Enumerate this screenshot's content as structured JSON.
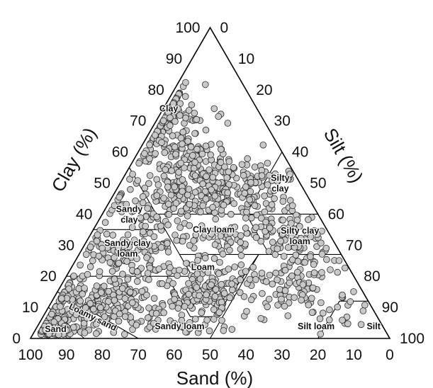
{
  "chart_data": {
    "type": "scatter",
    "subtype": "ternary",
    "xlabel": "Sand (%)",
    "left_axis_label": "Clay (%)",
    "right_axis_label": "Silt (%)",
    "ticks": [
      "0",
      "10",
      "20",
      "30",
      "40",
      "50",
      "60",
      "70",
      "80",
      "90",
      "100"
    ],
    "ranges": {
      "sand": [
        0,
        100
      ],
      "clay": [
        0,
        100
      ],
      "silt": [
        0,
        100
      ]
    },
    "grid": false,
    "marker": {
      "shape": "circle",
      "fill": "#c8c8c8",
      "stroke": "#2a2a2a"
    },
    "texture_classes": [
      "Clay",
      "Sandy clay",
      "Silty clay",
      "Clay loam",
      "Silty clay loam",
      "Sandy clay loam",
      "Loam",
      "Loamy sand",
      "Sand",
      "Sandy loam",
      "Silt loam",
      "Silt"
    ],
    "region_labels": [
      {
        "id": "clay",
        "lines": [
          "Clay"
        ],
        "sand": 25,
        "clay": 73
      },
      {
        "id": "sandy-clay",
        "lines": [
          "Sandy",
          "clay"
        ],
        "sand": 53,
        "clay": 39
      },
      {
        "id": "silty-clay",
        "lines": [
          "Silty",
          "clay"
        ],
        "sand": 6,
        "clay": 49
      },
      {
        "id": "clay-loam",
        "lines": [
          "Clay loam"
        ],
        "sand": 32,
        "clay": 34
      },
      {
        "id": "silty-clay-loam",
        "lines": [
          "Silty clay",
          "loam"
        ],
        "sand": 9,
        "clay": 32
      },
      {
        "id": "sandy-clay-loam",
        "lines": [
          "Sandy clay",
          "loam"
        ],
        "sand": 59,
        "clay": 28
      },
      {
        "id": "loam",
        "lines": [
          "Loam"
        ],
        "sand": 41,
        "clay": 22
      },
      {
        "id": "loamy-sand",
        "lines": [
          "Loamy sand"
        ],
        "sand": 80,
        "clay": 6,
        "rotate": 26
      },
      {
        "id": "sand",
        "lines": [
          "Sand"
        ],
        "sand": 92,
        "clay": 2
      },
      {
        "id": "sandy-loam",
        "lines": [
          "Sandy loam"
        ],
        "sand": 57,
        "clay": 3
      },
      {
        "id": "silt-loam",
        "lines": [
          "Silt loam"
        ],
        "sand": 19,
        "clay": 3
      },
      {
        "id": "silt",
        "lines": [
          "Silt"
        ],
        "sand": 3,
        "clay": 3
      }
    ],
    "point_clusters": [
      {
        "sand": 25,
        "clay": 88,
        "sd_sand": 4,
        "sd_clay": 4,
        "n": 30
      },
      {
        "sand": 25,
        "clay": 70,
        "sd_sand": 6,
        "sd_clay": 6,
        "n": 100
      },
      {
        "sand": 28,
        "clay": 55,
        "sd_sand": 8,
        "sd_clay": 5,
        "n": 180
      },
      {
        "sand": 12,
        "clay": 50,
        "sd_sand": 6,
        "sd_clay": 5,
        "n": 60
      },
      {
        "sand": 30,
        "clay": 44,
        "sd_sand": 10,
        "sd_clay": 3,
        "n": 130
      },
      {
        "sand": 50,
        "clay": 40,
        "sd_sand": 5,
        "sd_clay": 4,
        "n": 40
      },
      {
        "sand": 10,
        "clay": 33,
        "sd_sand": 5,
        "sd_clay": 4,
        "n": 70
      },
      {
        "sand": 30,
        "clay": 33,
        "sd_sand": 8,
        "sd_clay": 3,
        "n": 70
      },
      {
        "sand": 58,
        "clay": 28,
        "sd_sand": 7,
        "sd_clay": 4,
        "n": 110
      },
      {
        "sand": 40,
        "clay": 20,
        "sd_sand": 6,
        "sd_clay": 3,
        "n": 60
      },
      {
        "sand": 45,
        "clay": 12,
        "sd_sand": 6,
        "sd_clay": 3,
        "n": 90
      },
      {
        "sand": 70,
        "clay": 14,
        "sd_sand": 7,
        "sd_clay": 5,
        "n": 150
      },
      {
        "sand": 84,
        "clay": 8,
        "sd_sand": 5,
        "sd_clay": 4,
        "n": 110
      },
      {
        "sand": 93,
        "clay": 3,
        "sd_sand": 3,
        "sd_clay": 2,
        "n": 70
      },
      {
        "sand": 22,
        "clay": 15,
        "sd_sand": 7,
        "sd_clay": 5,
        "n": 70
      },
      {
        "sand": 12,
        "clay": 22,
        "sd_sand": 6,
        "sd_clay": 5,
        "n": 40
      },
      {
        "sand": 5,
        "clay": 8,
        "sd_sand": 3,
        "sd_clay": 3,
        "n": 10
      },
      {
        "sand": 55,
        "clay": 5,
        "sd_sand": 10,
        "sd_clay": 2,
        "n": 30
      }
    ]
  }
}
